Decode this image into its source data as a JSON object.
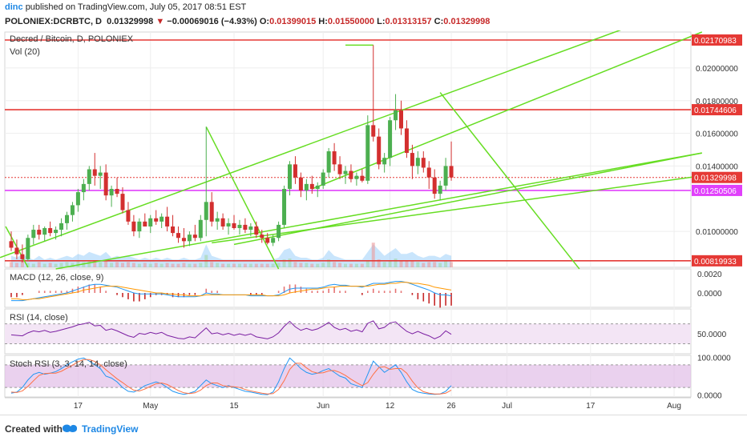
{
  "header": {
    "user": "dinc",
    "published_text": "published on TradingView.com, July 05, 2017 08:51 EST",
    "symbol": "POLONIEX:DCRBTC, D",
    "last": "0.01329998",
    "change_arrow": "▼",
    "change": "−0.00069016 (−4.93%)",
    "o_label": "O:",
    "o": "0.01399015",
    "h_label": "H:",
    "h": "0.01550000",
    "l_label": "L:",
    "l": "0.01313157",
    "c_label": "C:",
    "c": "0.01329998"
  },
  "footer": {
    "created": "Created with",
    "brand": "TradingView"
  },
  "colors": {
    "up": "#4caf50",
    "down": "#d32f2f",
    "resistance": "#e53935",
    "support": "#e040fb",
    "trend": "#66dd22",
    "macd": "#2196f3",
    "signal": "#ff9800",
    "rsi": "#7b1fa2",
    "stoch_k": "#2196f3",
    "stoch_d": "#ff7043"
  },
  "chart_data": [
    {
      "type": "candlestick",
      "title": "Decred / Bitcoin, D, POLONIEX",
      "volume_label": "Vol (20)",
      "x_ticks": [
        "17",
        "May",
        "15",
        "Jun",
        "12",
        "26",
        "Jul",
        "17",
        "Aug"
      ],
      "y_ticks": [
        "0.02000000",
        "0.01800000",
        "0.01600000",
        "0.01400000",
        "0.01000000"
      ],
      "ylim": [
        0.0078,
        0.0222
      ],
      "horizontal_levels": [
        {
          "value": 0.02170983,
          "label": "0.02170983",
          "color": "#e53935"
        },
        {
          "value": 0.01744606,
          "label": "0.01744606",
          "color": "#e53935"
        },
        {
          "value": 0.01329998,
          "label": "0.01329998",
          "color": "#e53935"
        },
        {
          "value": 0.01250506,
          "label": "0.01250506",
          "color": "#e040fb"
        },
        {
          "value": 0.00819933,
          "label": "0.00819933",
          "color": "#e53935"
        }
      ],
      "candles": [
        {
          "o": 0.0094,
          "h": 0.01,
          "l": 0.0088,
          "c": 0.009
        },
        {
          "o": 0.009,
          "h": 0.0095,
          "l": 0.0083,
          "c": 0.0086
        },
        {
          "o": 0.0086,
          "h": 0.0092,
          "l": 0.0081,
          "c": 0.0083
        },
        {
          "o": 0.0083,
          "h": 0.0098,
          "l": 0.0082,
          "c": 0.0096
        },
        {
          "o": 0.0096,
          "h": 0.0104,
          "l": 0.0092,
          "c": 0.0101
        },
        {
          "o": 0.0101,
          "h": 0.0104,
          "l": 0.0095,
          "c": 0.0098
        },
        {
          "o": 0.0098,
          "h": 0.0103,
          "l": 0.0094,
          "c": 0.0102
        },
        {
          "o": 0.0102,
          "h": 0.0106,
          "l": 0.0097,
          "c": 0.0099
        },
        {
          "o": 0.0099,
          "h": 0.0103,
          "l": 0.0095,
          "c": 0.0101
        },
        {
          "o": 0.0101,
          "h": 0.0108,
          "l": 0.0097,
          "c": 0.0105
        },
        {
          "o": 0.0105,
          "h": 0.0112,
          "l": 0.0101,
          "c": 0.011
        },
        {
          "o": 0.011,
          "h": 0.0118,
          "l": 0.0106,
          "c": 0.0116
        },
        {
          "o": 0.0116,
          "h": 0.0126,
          "l": 0.0112,
          "c": 0.0124
        },
        {
          "o": 0.0124,
          "h": 0.0132,
          "l": 0.0119,
          "c": 0.0129
        },
        {
          "o": 0.0129,
          "h": 0.014,
          "l": 0.0125,
          "c": 0.0138
        },
        {
          "o": 0.0138,
          "h": 0.0148,
          "l": 0.0128,
          "c": 0.0134
        },
        {
          "o": 0.0134,
          "h": 0.014,
          "l": 0.0126,
          "c": 0.0136
        },
        {
          "o": 0.0136,
          "h": 0.0141,
          "l": 0.0119,
          "c": 0.0122
        },
        {
          "o": 0.0122,
          "h": 0.0128,
          "l": 0.0115,
          "c": 0.0126
        },
        {
          "o": 0.0126,
          "h": 0.0133,
          "l": 0.0121,
          "c": 0.0123
        },
        {
          "o": 0.0123,
          "h": 0.0127,
          "l": 0.0111,
          "c": 0.0113
        },
        {
          "o": 0.0113,
          "h": 0.0118,
          "l": 0.0104,
          "c": 0.0106
        },
        {
          "o": 0.0106,
          "h": 0.011,
          "l": 0.0097,
          "c": 0.01
        },
        {
          "o": 0.01,
          "h": 0.0108,
          "l": 0.0096,
          "c": 0.0106
        },
        {
          "o": 0.0106,
          "h": 0.0111,
          "l": 0.0103,
          "c": 0.0103
        },
        {
          "o": 0.0103,
          "h": 0.011,
          "l": 0.0099,
          "c": 0.0108
        },
        {
          "o": 0.0108,
          "h": 0.0113,
          "l": 0.0104,
          "c": 0.0106
        },
        {
          "o": 0.0106,
          "h": 0.0111,
          "l": 0.0102,
          "c": 0.0109
        },
        {
          "o": 0.0109,
          "h": 0.0115,
          "l": 0.01,
          "c": 0.0103
        },
        {
          "o": 0.0103,
          "h": 0.011,
          "l": 0.0097,
          "c": 0.0099
        },
        {
          "o": 0.0099,
          "h": 0.0103,
          "l": 0.0093,
          "c": 0.0096
        },
        {
          "o": 0.0096,
          "h": 0.0102,
          "l": 0.009,
          "c": 0.0094
        },
        {
          "o": 0.0094,
          "h": 0.01,
          "l": 0.0091,
          "c": 0.0098
        },
        {
          "o": 0.0098,
          "h": 0.0104,
          "l": 0.0094,
          "c": 0.0096
        },
        {
          "o": 0.0096,
          "h": 0.011,
          "l": 0.0094,
          "c": 0.0107
        },
        {
          "o": 0.0107,
          "h": 0.0164,
          "l": 0.0097,
          "c": 0.0118
        },
        {
          "o": 0.0118,
          "h": 0.0124,
          "l": 0.0103,
          "c": 0.0106
        },
        {
          "o": 0.0106,
          "h": 0.0112,
          "l": 0.0101,
          "c": 0.0108
        },
        {
          "o": 0.0108,
          "h": 0.0111,
          "l": 0.0101,
          "c": 0.0103
        },
        {
          "o": 0.0103,
          "h": 0.0108,
          "l": 0.0098,
          "c": 0.0105
        },
        {
          "o": 0.0105,
          "h": 0.011,
          "l": 0.0101,
          "c": 0.0102
        },
        {
          "o": 0.0102,
          "h": 0.0107,
          "l": 0.0098,
          "c": 0.0104
        },
        {
          "o": 0.0104,
          "h": 0.0108,
          "l": 0.0099,
          "c": 0.0101
        },
        {
          "o": 0.0101,
          "h": 0.0105,
          "l": 0.0097,
          "c": 0.0103
        },
        {
          "o": 0.0103,
          "h": 0.0106,
          "l": 0.0096,
          "c": 0.0098
        },
        {
          "o": 0.0098,
          "h": 0.0101,
          "l": 0.0093,
          "c": 0.0096
        },
        {
          "o": 0.0096,
          "h": 0.0099,
          "l": 0.0092,
          "c": 0.0093
        },
        {
          "o": 0.0093,
          "h": 0.0098,
          "l": 0.0091,
          "c": 0.0096
        },
        {
          "o": 0.0096,
          "h": 0.0106,
          "l": 0.0094,
          "c": 0.0104
        },
        {
          "o": 0.0104,
          "h": 0.0128,
          "l": 0.0102,
          "c": 0.0126
        },
        {
          "o": 0.0126,
          "h": 0.0143,
          "l": 0.0122,
          "c": 0.0141
        },
        {
          "o": 0.0141,
          "h": 0.0146,
          "l": 0.0129,
          "c": 0.0133
        },
        {
          "o": 0.0133,
          "h": 0.0136,
          "l": 0.0121,
          "c": 0.0125
        },
        {
          "o": 0.0125,
          "h": 0.0132,
          "l": 0.0119,
          "c": 0.0129
        },
        {
          "o": 0.0129,
          "h": 0.0134,
          "l": 0.0123,
          "c": 0.0126
        },
        {
          "o": 0.0126,
          "h": 0.013,
          "l": 0.0121,
          "c": 0.0128
        },
        {
          "o": 0.0128,
          "h": 0.0138,
          "l": 0.0126,
          "c": 0.0136
        },
        {
          "o": 0.0136,
          "h": 0.0151,
          "l": 0.0133,
          "c": 0.0149
        },
        {
          "o": 0.0149,
          "h": 0.0154,
          "l": 0.0137,
          "c": 0.0141
        },
        {
          "o": 0.0141,
          "h": 0.0146,
          "l": 0.0132,
          "c": 0.0135
        },
        {
          "o": 0.0135,
          "h": 0.014,
          "l": 0.0129,
          "c": 0.0137
        },
        {
          "o": 0.0137,
          "h": 0.0141,
          "l": 0.013,
          "c": 0.0132
        },
        {
          "o": 0.0132,
          "h": 0.0136,
          "l": 0.0128,
          "c": 0.0134
        },
        {
          "o": 0.0134,
          "h": 0.0138,
          "l": 0.013,
          "c": 0.0131
        },
        {
          "o": 0.0131,
          "h": 0.0171,
          "l": 0.0129,
          "c": 0.0165
        },
        {
          "o": 0.0165,
          "h": 0.0214,
          "l": 0.0155,
          "c": 0.0158
        },
        {
          "o": 0.0158,
          "h": 0.0163,
          "l": 0.0138,
          "c": 0.0141
        },
        {
          "o": 0.0141,
          "h": 0.0148,
          "l": 0.0136,
          "c": 0.0145
        },
        {
          "o": 0.0145,
          "h": 0.017,
          "l": 0.014,
          "c": 0.0168
        },
        {
          "o": 0.0168,
          "h": 0.0184,
          "l": 0.0162,
          "c": 0.0174
        },
        {
          "o": 0.0174,
          "h": 0.018,
          "l": 0.0159,
          "c": 0.0163
        },
        {
          "o": 0.0163,
          "h": 0.0168,
          "l": 0.0145,
          "c": 0.0148
        },
        {
          "o": 0.0148,
          "h": 0.0153,
          "l": 0.0132,
          "c": 0.014
        },
        {
          "o": 0.014,
          "h": 0.0149,
          "l": 0.0135,
          "c": 0.0145
        },
        {
          "o": 0.0145,
          "h": 0.0149,
          "l": 0.0136,
          "c": 0.0139
        },
        {
          "o": 0.0139,
          "h": 0.0143,
          "l": 0.0126,
          "c": 0.0133
        },
        {
          "o": 0.0133,
          "h": 0.0138,
          "l": 0.012,
          "c": 0.0123
        },
        {
          "o": 0.0123,
          "h": 0.0131,
          "l": 0.0119,
          "c": 0.0128
        },
        {
          "o": 0.0128,
          "h": 0.0145,
          "l": 0.0125,
          "c": 0.014
        },
        {
          "o": 0.014,
          "h": 0.0155,
          "l": 0.0131,
          "c": 0.0133
        }
      ],
      "volume": [
        6,
        5,
        7,
        5,
        4,
        6,
        4,
        5,
        4,
        5,
        6,
        5,
        7,
        6,
        8,
        7,
        6,
        8,
        5,
        6,
        5,
        6,
        5,
        4,
        5,
        4,
        5,
        4,
        5,
        4,
        4,
        5,
        4,
        4,
        5,
        14,
        6,
        5,
        4,
        4,
        4,
        4,
        4,
        4,
        4,
        4,
        4,
        4,
        5,
        9,
        10,
        6,
        5,
        5,
        4,
        4,
        5,
        9,
        6,
        5,
        4,
        4,
        4,
        4,
        8,
        28,
        9,
        6,
        8,
        10,
        7,
        7,
        8,
        6,
        5,
        6,
        6,
        5,
        7,
        6
      ]
    },
    {
      "type": "line",
      "title": "MACD (12, 26, close, 9)",
      "y_ticks": [
        "0.0020",
        "0.0000"
      ],
      "ylim": [
        -0.0015,
        0.0025
      ],
      "macd": [
        -0.0008,
        -0.0008,
        -0.0008,
        -0.0007,
        -0.0006,
        -0.0005,
        -0.0004,
        -0.0003,
        -0.0002,
        -0.0001,
        0.0,
        0.0002,
        0.0004,
        0.0006,
        0.0008,
        0.0009,
        0.0009,
        0.0008,
        0.0007,
        0.0006,
        0.0004,
        0.0002,
        0.0,
        -0.0001,
        -0.0001,
        -0.0001,
        -0.0001,
        -0.0001,
        -0.0002,
        -0.0003,
        -0.0004,
        -0.0004,
        -0.0004,
        -0.0004,
        -0.0003,
        0.0,
        -0.0001,
        -0.0001,
        -0.0002,
        -0.0002,
        -0.0002,
        -0.0002,
        -0.0002,
        -0.0003,
        -0.0003,
        -0.0003,
        -0.0003,
        -0.0003,
        -0.0002,
        0.0001,
        0.0004,
        0.0005,
        0.0005,
        0.0005,
        0.0005,
        0.0005,
        0.0006,
        0.0008,
        0.0009,
        0.0008,
        0.0008,
        0.0007,
        0.0007,
        0.0006,
        0.0008,
        0.001,
        0.001,
        0.001,
        0.0011,
        0.0012,
        0.0012,
        0.0011,
        0.0009,
        0.0007,
        0.0005,
        0.0003,
        0.0,
        -0.0002,
        -0.0002,
        -0.0003
      ],
      "signal": [
        -0.0006,
        -0.0006,
        -0.0007,
        -0.0007,
        -0.0006,
        -0.0006,
        -0.0005,
        -0.0004,
        -0.0003,
        -0.0002,
        -0.0001,
        0.0,
        0.0001,
        0.0003,
        0.0004,
        0.0005,
        0.0006,
        0.0007,
        0.0007,
        0.0007,
        0.0006,
        0.0005,
        0.0004,
        0.0003,
        0.0002,
        0.0001,
        0.0,
        0.0,
        -0.0001,
        -0.0001,
        -0.0002,
        -0.0002,
        -0.0003,
        -0.0003,
        -0.0003,
        -0.0002,
        -0.0002,
        -0.0002,
        -0.0002,
        -0.0002,
        -0.0002,
        -0.0002,
        -0.0002,
        -0.0002,
        -0.0002,
        -0.0002,
        -0.0003,
        -0.0003,
        -0.0003,
        -0.0002,
        0.0,
        0.0001,
        0.0002,
        0.0003,
        0.0004,
        0.0004,
        0.0005,
        0.0006,
        0.0006,
        0.0007,
        0.0007,
        0.0007,
        0.0007,
        0.0007,
        0.0007,
        0.0008,
        0.0009,
        0.0009,
        0.001,
        0.001,
        0.0011,
        0.0011,
        0.001,
        0.001,
        0.0009,
        0.0008,
        0.0006,
        0.0005,
        0.0004,
        0.0003
      ]
    },
    {
      "type": "line",
      "title": "RSI (14, close)",
      "y_ticks": [
        "50.0000"
      ],
      "ylim": [
        10,
        100
      ],
      "values": [
        48,
        47,
        46,
        52,
        56,
        54,
        57,
        53,
        55,
        58,
        61,
        64,
        68,
        70,
        73,
        66,
        67,
        57,
        60,
        56,
        51,
        46,
        43,
        51,
        49,
        53,
        50,
        53,
        47,
        44,
        41,
        40,
        44,
        42,
        52,
        62,
        50,
        52,
        48,
        51,
        47,
        50,
        47,
        50,
        44,
        42,
        40,
        44,
        52,
        65,
        75,
        64,
        57,
        61,
        57,
        60,
        66,
        73,
        63,
        58,
        61,
        55,
        58,
        54,
        71,
        76,
        60,
        63,
        72,
        74,
        64,
        55,
        50,
        55,
        50,
        46,
        40,
        45,
        56,
        49
      ]
    },
    {
      "type": "line",
      "title": "Stoch RSI (3, 3, 14, 14, close)",
      "y_ticks": [
        "100.0000",
        "0.0000"
      ],
      "ylim": [
        -5,
        105
      ],
      "k": [
        5,
        8,
        20,
        40,
        55,
        60,
        55,
        58,
        62,
        70,
        80,
        88,
        95,
        98,
        90,
        80,
        70,
        50,
        45,
        35,
        20,
        10,
        8,
        15,
        25,
        30,
        35,
        30,
        20,
        10,
        5,
        2,
        5,
        10,
        25,
        40,
        30,
        25,
        20,
        25,
        20,
        15,
        10,
        8,
        5,
        2,
        1,
        8,
        35,
        70,
        98,
        85,
        70,
        60,
        55,
        58,
        65,
        70,
        60,
        50,
        45,
        30,
        25,
        20,
        55,
        90,
        75,
        60,
        70,
        80,
        60,
        35,
        15,
        8,
        5,
        3,
        2,
        3,
        10,
        25
      ],
      "d": [
        8,
        7,
        11,
        23,
        38,
        52,
        57,
        58,
        58,
        63,
        71,
        79,
        88,
        94,
        94,
        89,
        80,
        67,
        55,
        43,
        33,
        22,
        13,
        11,
        16,
        23,
        30,
        32,
        28,
        20,
        12,
        6,
        4,
        6,
        13,
        25,
        32,
        32,
        25,
        23,
        22,
        20,
        15,
        11,
        8,
        5,
        3,
        4,
        15,
        38,
        68,
        84,
        84,
        72,
        62,
        58,
        59,
        64,
        65,
        60,
        52,
        42,
        33,
        25,
        33,
        55,
        73,
        75,
        68,
        70,
        70,
        58,
        37,
        19,
        9,
        5,
        3,
        3,
        5,
        13
      ]
    }
  ]
}
